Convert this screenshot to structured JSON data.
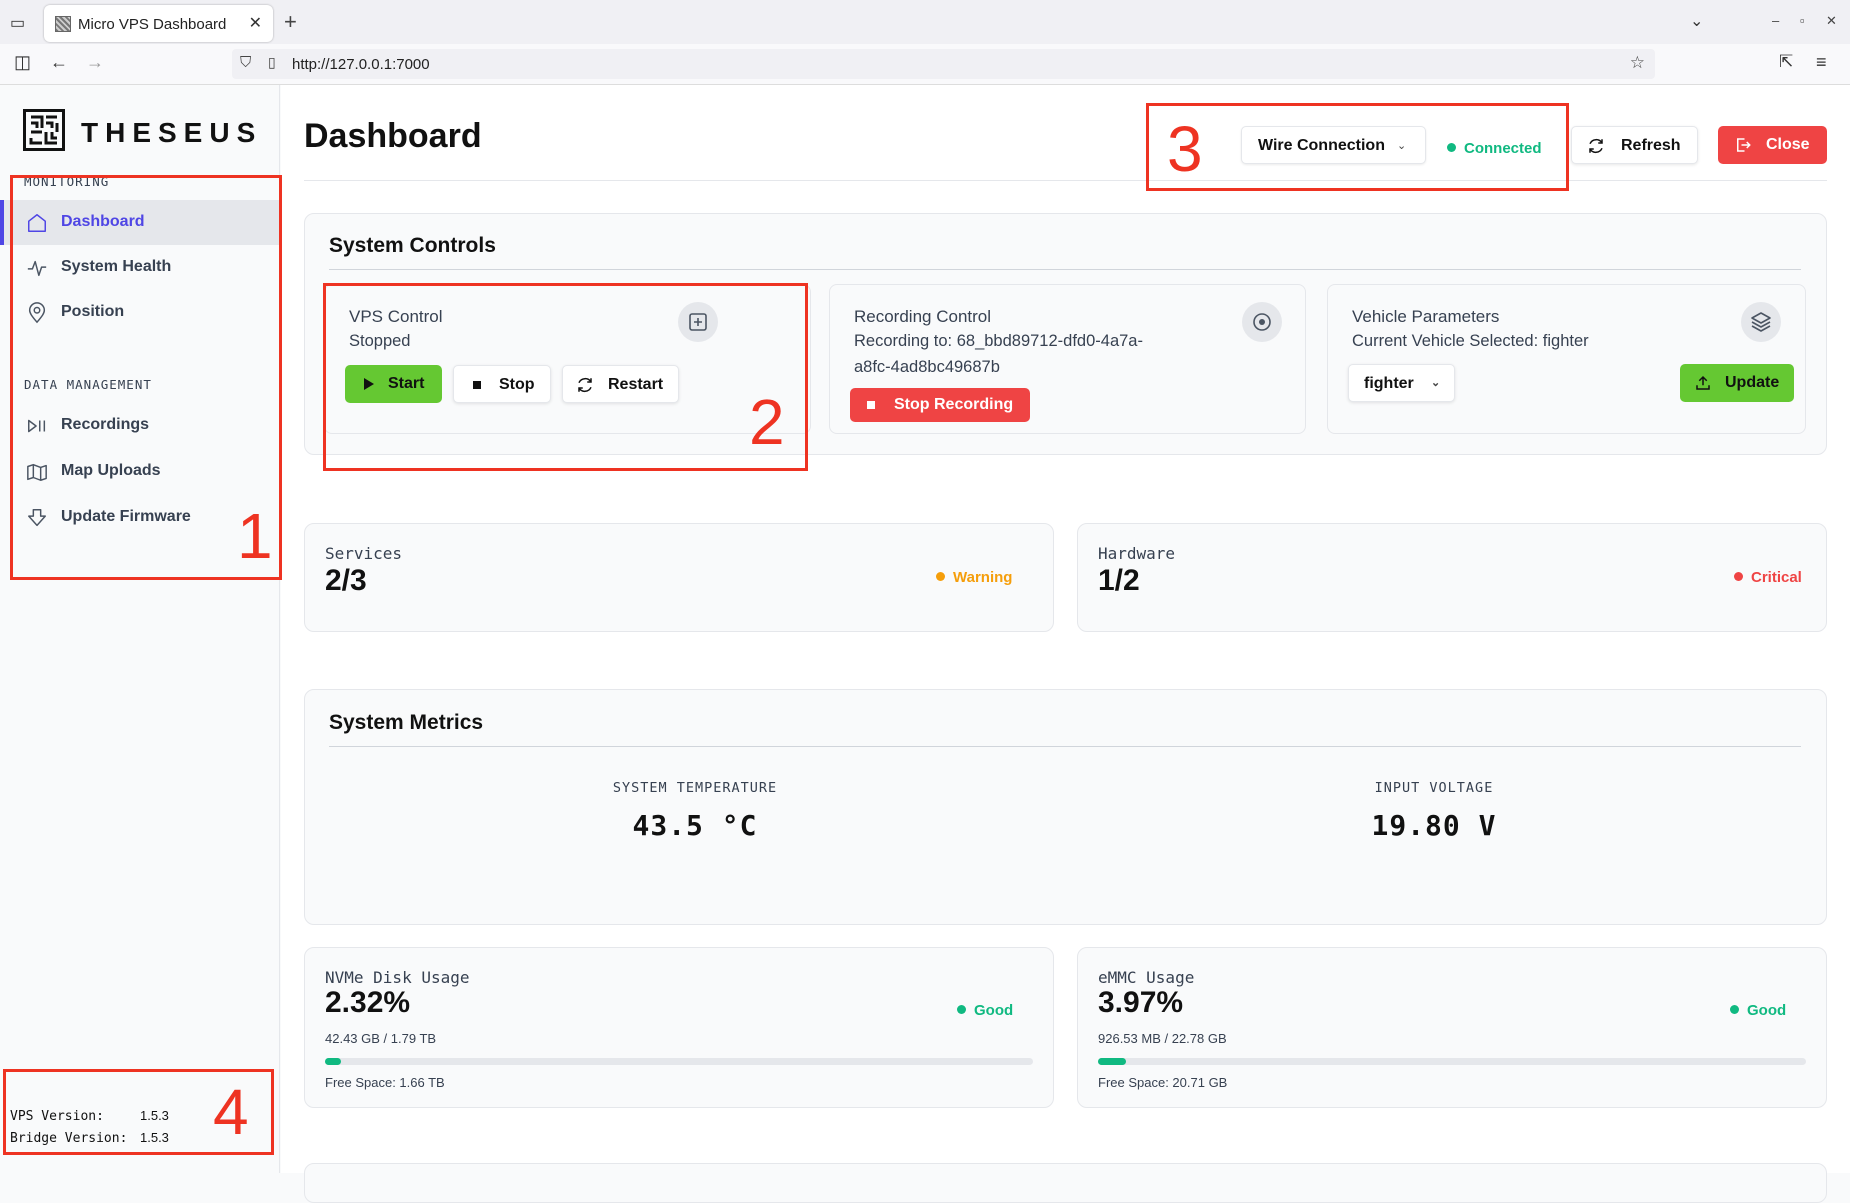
{
  "browser": {
    "tab_title": "Micro VPS Dashboard",
    "url": "http://127.0.0.1:7000"
  },
  "sidebar": {
    "brand": "THESEUS",
    "monitoring_title": "MONITORING",
    "monitoring_items": [
      {
        "label": "Dashboard",
        "icon": "home-icon",
        "active": true
      },
      {
        "label": "System Health",
        "icon": "activity-icon"
      },
      {
        "label": "Position",
        "icon": "map-pin-icon"
      }
    ],
    "data_title": "DATA MANAGEMENT",
    "data_items": [
      {
        "label": "Recordings",
        "icon": "play-pause-icon"
      },
      {
        "label": "Map Uploads",
        "icon": "map-icon"
      },
      {
        "label": "Update Firmware",
        "icon": "download-icon"
      }
    ],
    "vps_version_label": "VPS Version:",
    "vps_version": "1.5.3",
    "bridge_version_label": "Bridge Version:",
    "bridge_version": "1.5.3"
  },
  "header": {
    "title": "Dashboard",
    "connection_select": "Wire Connection",
    "connection_status": "Connected",
    "refresh_label": "Refresh",
    "close_label": "Close"
  },
  "system_controls": {
    "title": "System Controls",
    "vps": {
      "title": "VPS Control",
      "status": "Stopped",
      "start_label": "Start",
      "stop_label": "Stop",
      "restart_label": "Restart"
    },
    "recording": {
      "title": "Recording Control",
      "text_line1": "Recording to: 68_bbd89712-dfd0-4a7a-",
      "text_line2": "a8fc-4ad8bc49687b",
      "stop_label": "Stop Recording"
    },
    "vehicle": {
      "title": "Vehicle Parameters",
      "current": "Current Vehicle Selected: fighter",
      "select_value": "fighter",
      "update_label": "Update"
    }
  },
  "stats": {
    "services": {
      "label": "Services",
      "value": "2/3",
      "status": "Warning"
    },
    "hardware": {
      "label": "Hardware",
      "value": "1/2",
      "status": "Critical"
    }
  },
  "metrics": {
    "title": "System Metrics",
    "temp_label": "SYSTEM TEMPERATURE",
    "temp_value": "43.5 °C",
    "voltage_label": "INPUT VOLTAGE",
    "voltage_value": "19.80 V"
  },
  "disks": {
    "nvme": {
      "label": "NVMe Disk Usage",
      "percent": "2.32%",
      "usage": "42.43 GB / 1.79 TB",
      "free": "Free Space: 1.66 TB",
      "status": "Good",
      "fill_percent": 2.32
    },
    "emmc": {
      "label": "eMMC Usage",
      "percent": "3.97%",
      "usage": "926.53 MB / 22.78 GB",
      "free": "Free Space: 20.71 GB",
      "status": "Good",
      "fill_percent": 3.97
    }
  },
  "annotations": [
    "1",
    "2",
    "3",
    "4"
  ],
  "colors": {
    "accent": "#4f46e5",
    "good": "#10b981",
    "warning": "#f59e0b",
    "critical": "#ef4444",
    "annotation": "#ee3322"
  }
}
